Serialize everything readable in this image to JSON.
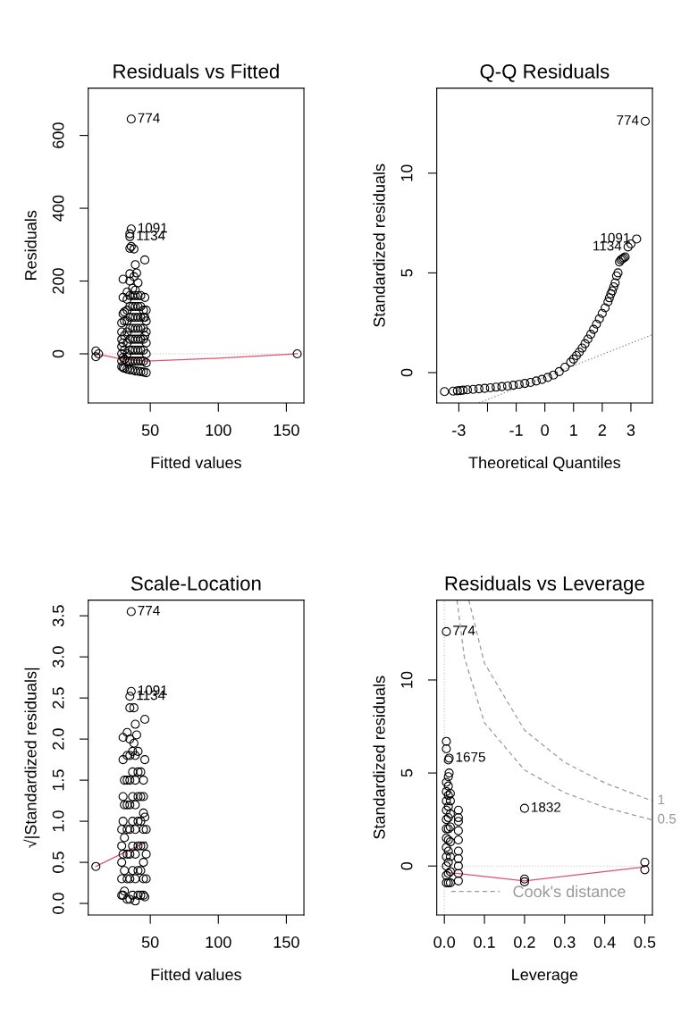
{
  "chart_data": [
    {
      "type": "scatter",
      "title": "Residuals vs Fitted",
      "xlabel": "Fitted values",
      "ylabel": "Residuals",
      "xlim": [
        4.4,
        162.9
      ],
      "ylim": [
        -135,
        730
      ],
      "xticks": [
        50,
        100,
        150
      ],
      "yticks": [
        0,
        200,
        400,
        600
      ],
      "grid": false,
      "legend": false,
      "series": [
        {
          "color": "#000000",
          "marker": "circle",
          "x": [
            29,
            29,
            29,
            29,
            29,
            29,
            29,
            30,
            30,
            30,
            30,
            30,
            30,
            31,
            31,
            31,
            31,
            31,
            31,
            33,
            33,
            33,
            33,
            33,
            33,
            33,
            33,
            33,
            35,
            35,
            35,
            35,
            35,
            35,
            35,
            35,
            35,
            35,
            35,
            35,
            35,
            36,
            36,
            36,
            37,
            37,
            37,
            37,
            37,
            37,
            37,
            37,
            37,
            38,
            38,
            39,
            39,
            39,
            39,
            39,
            39,
            39,
            39,
            39,
            39,
            40,
            41,
            41,
            41,
            41,
            41,
            41,
            41,
            41,
            41,
            43,
            43,
            43,
            43,
            43,
            43,
            43,
            43,
            45,
            45,
            45,
            45,
            45,
            45,
            45,
            46,
            46,
            46,
            46,
            47,
            47,
            47,
            47,
            47,
            47,
            47,
            10,
            10,
            12,
            158
          ],
          "values": [
            -35,
            -20,
            0,
            20,
            40,
            60,
            85,
            -38,
            -10,
            30,
            110,
            155,
            205,
            -40,
            -15,
            10,
            50,
            90,
            115,
            -42,
            -20,
            0,
            30,
            60,
            90,
            120,
            150,
            170,
            -44,
            -20,
            10,
            40,
            70,
            100,
            130,
            160,
            200,
            220,
            290,
            322,
            330,
            645,
            343,
            295,
            -45,
            -20,
            10,
            40,
            70,
            100,
            130,
            160,
            180,
            212,
            288,
            -47,
            -20,
            10,
            40,
            70,
            100,
            130,
            160,
            175,
            245,
            222,
            -48,
            -20,
            10,
            40,
            70,
            100,
            130,
            160,
            195,
            -49,
            -20,
            10,
            40,
            70,
            100,
            130,
            160,
            -50,
            -20,
            10,
            40,
            70,
            100,
            120,
            258,
            155,
            100,
            50,
            -52,
            -25,
            0,
            30,
            60,
            90,
            120,
            8,
            -8,
            0,
            0
          ]
        },
        {
          "type": "line",
          "color": "#df536b",
          "marker": "none",
          "line_style": "solid",
          "x": [
            10,
            30,
            47,
            100,
            158
          ],
          "values": [
            0,
            -15,
            -20,
            -12,
            0
          ]
        }
      ],
      "ref_lines": [
        {
          "axis": "y",
          "value": 0,
          "color": "#bebebe",
          "line_style": "dotted"
        }
      ],
      "annotations": [
        {
          "text": "774",
          "x": 36,
          "y": 645
        },
        {
          "text": "1091",
          "x": 36,
          "y": 343
        },
        {
          "text": "1134",
          "x": 35,
          "y": 322
        }
      ]
    },
    {
      "type": "scatter",
      "title": "Q-Q Residuals",
      "xlabel": "Theoretical Quantiles",
      "ylabel": "Standardized residuals",
      "xlim": [
        -3.77,
        3.75
      ],
      "ylim": [
        -1.52,
        14.26
      ],
      "xticks": [
        -3,
        {
          "value": -2,
          "label": null
        },
        -1,
        0,
        1,
        2,
        3
      ],
      "yticks": [
        0,
        5,
        10
      ],
      "grid": false,
      "legend": false,
      "series": [
        {
          "color": "#000000",
          "marker": "circle",
          "x": [
            -3.5,
            -3.2,
            -3.05,
            -2.95,
            -2.85,
            -2.7,
            -2.5,
            -2.3,
            -2.1,
            -1.9,
            -1.7,
            -1.5,
            -1.3,
            -1.1,
            -0.9,
            -0.7,
            -0.5,
            -0.3,
            -0.1,
            0.1,
            0.3,
            0.5,
            0.7,
            0.9,
            1.0,
            1.1,
            1.2,
            1.3,
            1.4,
            1.5,
            1.6,
            1.7,
            1.8,
            1.9,
            2.0,
            2.1,
            2.2,
            2.25,
            2.3,
            2.35,
            2.4,
            2.45,
            2.5,
            2.55,
            2.6,
            2.65,
            2.7,
            2.75,
            2.8,
            2.9,
            3.0,
            3.2,
            3.5
          ],
          "values": [
            -0.95,
            -0.93,
            -0.91,
            -0.9,
            -0.88,
            -0.86,
            -0.84,
            -0.81,
            -0.79,
            -0.76,
            -0.73,
            -0.7,
            -0.67,
            -0.63,
            -0.59,
            -0.54,
            -0.49,
            -0.42,
            -0.34,
            -0.24,
            -0.12,
            0.05,
            0.27,
            0.52,
            0.68,
            0.85,
            1.03,
            1.23,
            1.45,
            1.68,
            1.92,
            2.17,
            2.43,
            2.7,
            2.97,
            3.25,
            3.55,
            3.75,
            3.95,
            4.1,
            4.3,
            4.5,
            4.85,
            5.0,
            5.55,
            5.65,
            5.7,
            5.75,
            5.8,
            6.3,
            6.45,
            6.7,
            12.6
          ]
        },
        {
          "type": "line",
          "color": "#808080",
          "marker": "none",
          "line_style": "dotted",
          "x": [
            -2.3,
            3.75
          ],
          "values": [
            -1.52,
            1.9
          ]
        }
      ],
      "annotations": [
        {
          "text": "774",
          "x": 3.5,
          "y": 12.6
        },
        {
          "text": "1091",
          "x": 3.2,
          "y": 6.7
        },
        {
          "text": "1134",
          "x": 2.9,
          "y": 6.3
        }
      ]
    },
    {
      "type": "scatter",
      "title": "Scale-Location",
      "xlabel": "Fitted values",
      "ylabel": "√|Standardized residuals|",
      "xlim": [
        4.4,
        162.9
      ],
      "ylim": [
        -0.14,
        3.69
      ],
      "xticks": [
        50,
        100,
        150
      ],
      "yticks": [
        {
          "value": 0,
          "label": "0.0"
        },
        {
          "value": 0.5,
          "label": "0.5"
        },
        {
          "value": 1,
          "label": "1.0"
        },
        {
          "value": 1.5,
          "label": "1.5"
        },
        {
          "value": 2,
          "label": "2.0"
        },
        {
          "value": 2.5,
          "label": "2.5"
        },
        {
          "value": 3,
          "label": "3.0"
        },
        {
          "value": 3.5,
          "label": "3.5"
        }
      ],
      "grid": false,
      "legend": false,
      "series": [
        {
          "color": "#000000",
          "marker": "circle",
          "x": [
            29,
            29,
            29,
            29,
            29,
            30,
            30,
            30,
            30,
            30,
            30,
            31,
            31,
            31,
            31,
            31,
            33,
            33,
            33,
            33,
            33,
            33,
            33,
            33,
            35,
            35,
            35,
            35,
            35,
            35,
            35,
            35,
            35,
            35,
            36,
            36,
            37,
            37,
            37,
            37,
            37,
            37,
            37,
            38,
            38,
            39,
            39,
            39,
            39,
            39,
            39,
            39,
            39,
            40,
            41,
            41,
            41,
            41,
            41,
            41,
            41,
            43,
            43,
            43,
            43,
            43,
            43,
            45,
            45,
            45,
            45,
            45,
            45,
            45,
            45,
            46,
            46,
            46,
            46,
            47,
            47,
            47,
            10
          ],
          "values": [
            0.1,
            0.3,
            0.5,
            0.7,
            0.9,
            0.1,
            0.6,
            1.0,
            1.3,
            1.75,
            2.02,
            0.15,
            0.4,
            0.8,
            1.2,
            1.5,
            0.05,
            0.3,
            0.6,
            0.9,
            1.2,
            1.5,
            1.8,
            2.08,
            0.05,
            0.3,
            0.6,
            0.9,
            1.2,
            1.5,
            1.8,
            2.0,
            2.38,
            2.52,
            3.55,
            2.58,
            0.1,
            0.4,
            0.7,
            1.0,
            1.3,
            1.6,
            1.85,
            2.38,
            1.95,
            0.03,
            0.3,
            0.6,
            0.9,
            1.2,
            1.5,
            1.8,
            2.18,
            2.05,
            0.1,
            0.4,
            0.7,
            1.0,
            1.3,
            1.6,
            1.85,
            0.1,
            0.4,
            0.7,
            1.0,
            1.3,
            1.6,
            0.1,
            0.3,
            0.5,
            0.7,
            0.9,
            1.1,
            1.3,
            1.5,
            2.24,
            1.75,
            1.05,
            0.08,
            0.3,
            0.6,
            0.9,
            0.45
          ]
        },
        {
          "type": "line",
          "color": "#df536b",
          "marker": "none",
          "line_style": "solid",
          "x": [
            10,
            47
          ],
          "values": [
            0.45,
            0.75
          ]
        }
      ],
      "annotations": [
        {
          "text": "774",
          "x": 36,
          "y": 3.55
        },
        {
          "text": "1091",
          "x": 36,
          "y": 2.58
        },
        {
          "text": "1134",
          "x": 35,
          "y": 2.52
        }
      ]
    },
    {
      "type": "scatter",
      "title": "Residuals vs Leverage",
      "xlabel": "Leverage",
      "ylabel": "Standardized residuals",
      "xlim": [
        -0.019,
        0.519
      ],
      "ylim": [
        -2.63,
        14.29
      ],
      "xticks": [
        {
          "value": 0,
          "label": "0.0"
        },
        {
          "value": 0.1,
          "label": "0.1"
        },
        {
          "value": 0.2,
          "label": "0.2"
        },
        {
          "value": 0.3,
          "label": "0.3"
        },
        {
          "value": 0.4,
          "label": "0.4"
        },
        {
          "value": 0.5,
          "label": "0.5"
        }
      ],
      "yticks": [
        0,
        5,
        10
      ],
      "grid": false,
      "legend": "bottom left",
      "series": [
        {
          "color": "#000000",
          "marker": "circle",
          "x": [
            0.005,
            0.005,
            0.005,
            0.005,
            0.005,
            0.005,
            0.005,
            0.005,
            0.005,
            0.005,
            0.005,
            0.005,
            0.005,
            0.005,
            0.005,
            0.01,
            0.01,
            0.01,
            0.01,
            0.01,
            0.01,
            0.01,
            0.01,
            0.01,
            0.01,
            0.01,
            0.01,
            0.012,
            0.012,
            0.015,
            0.015,
            0.015,
            0.015,
            0.015,
            0.015,
            0.015,
            0.015,
            0.035,
            0.035,
            0.035,
            0.035,
            0.035,
            0.035,
            0.035,
            0.035,
            0.035,
            0.035,
            0.2,
            0.2,
            0.2,
            0.5,
            0.5
          ],
          "values": [
            -0.9,
            -0.5,
            0,
            0.5,
            1,
            1.5,
            2,
            2.5,
            3,
            3.5,
            4,
            4.5,
            6.3,
            6.7,
            12.6,
            -0.9,
            -0.4,
            0.2,
            0.8,
            1.4,
            2,
            2.6,
            3.2,
            3.8,
            4.3,
            4.8,
            5.7,
            5.8,
            5.0,
            -0.9,
            -0.3,
            0.5,
            1.3,
            2.1,
            2.8,
            3.5,
            3.9,
            -0.8,
            -0.4,
            0,
            0.4,
            0.8,
            1.4,
            1.9,
            2.4,
            2.6,
            3.0,
            -0.7,
            -0.85,
            3.1,
            0.2,
            -0.2
          ]
        },
        {
          "type": "line",
          "color": "#df536b",
          "marker": "none",
          "line_style": "solid",
          "x": [
            0.005,
            0.035,
            0.2,
            0.5
          ],
          "values": [
            -0.35,
            -0.4,
            -0.8,
            -0.05
          ]
        },
        {
          "type": "line",
          "name": "Cook's distance",
          "color": "#999999",
          "marker": "none",
          "line_style": "dashed",
          "x": [
            0.0315,
            0.05,
            0.1,
            0.2,
            0.3,
            0.4,
            0.5,
            0.519
          ],
          "values": [
            14.29,
            11.2,
            7.7,
            5.16,
            3.94,
            3.16,
            2.58,
            2.48
          ]
        },
        {
          "type": "line",
          "color": "#999999",
          "marker": "none",
          "line_style": "dashed",
          "x": [
            0.061,
            0.1,
            0.2,
            0.3,
            0.4,
            0.5,
            0.519
          ],
          "values": [
            14.29,
            10.9,
            7.3,
            5.57,
            4.47,
            3.65,
            3.51
          ]
        }
      ],
      "ref_lines": [
        {
          "axis": "y",
          "value": 0,
          "color": "#bebebe",
          "line_style": "dotted"
        },
        {
          "axis": "x",
          "value": 0,
          "color": "#bebebe",
          "line_style": "dotted"
        }
      ],
      "annotations": [
        {
          "text": "774",
          "x": 0.005,
          "y": 12.6
        },
        {
          "text": "1675",
          "x": 0.012,
          "y": 5.8
        },
        {
          "text": "1832",
          "x": 0.2,
          "y": 3.1
        },
        {
          "text": "1",
          "x": 0.519,
          "y": 3.51
        },
        {
          "text": "0.5",
          "x": 0.519,
          "y": 2.48
        }
      ]
    }
  ]
}
